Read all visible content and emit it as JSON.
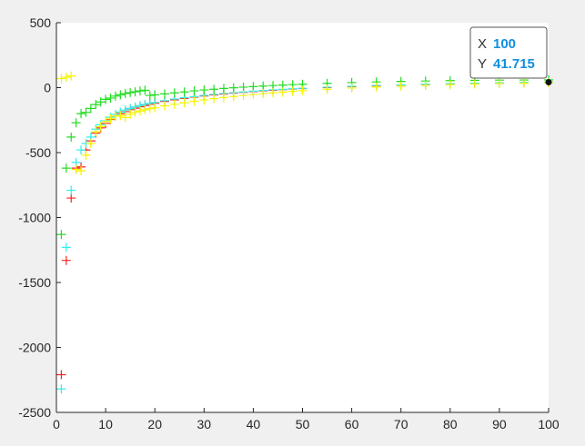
{
  "chart_data": {
    "type": "scatter",
    "marker": "+",
    "xlim": [
      0,
      100
    ],
    "ylim": [
      -2500,
      500
    ],
    "xticks": [
      "0",
      "10",
      "20",
      "30",
      "40",
      "50",
      "60",
      "70",
      "80",
      "90",
      "100"
    ],
    "yticks": [
      "500",
      "0",
      "-500",
      "-1000",
      "-1500",
      "-2000",
      "-2500"
    ],
    "grid": false,
    "colors": {
      "plot_bg": "#ffffff",
      "figure_bg": "#f0f0f0",
      "axis": "#262626"
    },
    "series": [
      {
        "color": "#ff2020",
        "x": [
          1,
          2,
          3,
          4,
          5,
          6,
          7,
          8,
          9,
          10,
          11,
          12,
          13,
          14,
          15,
          16,
          17,
          18,
          19,
          20,
          22,
          24,
          26,
          28,
          30,
          32,
          34,
          36,
          38,
          40,
          42,
          44,
          46,
          48,
          50,
          55,
          60,
          65,
          70,
          75,
          80,
          85,
          90,
          95,
          100
        ],
        "y": [
          -2210,
          -1330,
          -850,
          -620,
          -610,
          -480,
          -410,
          -350,
          -310,
          -275,
          -245,
          -220,
          -200,
          -185,
          -170,
          -158,
          -147,
          -137,
          -128,
          -120,
          -106,
          -94,
          -83,
          -73,
          -64,
          -56,
          -49,
          -42,
          -36,
          -30,
          -25,
          -20,
          -15,
          -11,
          -7,
          1,
          8,
          14,
          20,
          25,
          29,
          33,
          36,
          39,
          41.715
        ]
      },
      {
        "color": "#33eeee",
        "x": [
          1,
          2,
          3,
          4,
          5,
          6,
          7,
          8,
          9,
          10,
          11,
          12,
          13,
          14,
          15,
          16,
          17,
          18,
          19,
          20,
          22,
          24,
          26,
          28,
          30,
          32,
          34,
          36,
          38,
          40,
          42,
          44,
          46,
          48,
          50,
          55,
          60,
          65,
          70,
          75,
          80,
          85,
          90,
          95,
          100
        ],
        "y": [
          -2320,
          -1230,
          -790,
          -575,
          -480,
          -430,
          -380,
          -320,
          -285,
          -255,
          -228,
          -205,
          -188,
          -172,
          -160,
          -148,
          -138,
          -129,
          -121,
          -114,
          -100,
          -88,
          -78,
          -69,
          -60,
          -52,
          -45,
          -39,
          -33,
          -27,
          -22,
          -17,
          -13,
          -9,
          -5,
          3,
          10,
          16,
          21,
          26,
          30,
          34,
          37,
          40,
          42
        ]
      },
      {
        "color": "#22dd22",
        "x": [
          1,
          2,
          3,
          4,
          5,
          6,
          7,
          8,
          9,
          10,
          11,
          12,
          13,
          14,
          15,
          16,
          17,
          18,
          19,
          20,
          22,
          24,
          26,
          28,
          30,
          32,
          34,
          36,
          38,
          40,
          42,
          44,
          46,
          48,
          50,
          55,
          60,
          65,
          70,
          75,
          80,
          85,
          90,
          95,
          100
        ],
        "y": [
          -1130,
          -620,
          -380,
          -270,
          -200,
          -190,
          -160,
          -130,
          -110,
          -90,
          -80,
          -65,
          -55,
          -45,
          -38,
          -32,
          -25,
          -20,
          -60,
          -55,
          -48,
          -40,
          -33,
          -25,
          -18,
          -12,
          -6,
          -1,
          4,
          8,
          12,
          16,
          20,
          23,
          26,
          33,
          39,
          44,
          48,
          51,
          54,
          56,
          58,
          59,
          60
        ]
      },
      {
        "color": "#f5f500",
        "x": [
          1,
          2,
          3,
          4,
          5,
          6,
          7,
          8,
          9,
          10,
          11,
          12,
          13,
          14,
          15,
          16,
          17,
          18,
          19,
          20,
          22,
          24,
          26,
          28,
          30,
          32,
          34,
          36,
          38,
          40,
          42,
          44,
          46,
          48,
          50,
          55,
          60,
          65,
          70,
          75,
          80,
          85,
          90,
          95,
          100
        ],
        "y": [
          70,
          80,
          90,
          -630,
          -640,
          -520,
          -430,
          -340,
          -300,
          -260,
          -240,
          -220,
          -215,
          -230,
          -205,
          -190,
          -180,
          -170,
          -162,
          -155,
          -140,
          -128,
          -116,
          -105,
          -95,
          -85,
          -76,
          -68,
          -60,
          -53,
          -46,
          -40,
          -34,
          -28,
          -23,
          -12,
          -3,
          5,
          12,
          18,
          23,
          28,
          32,
          35,
          38
        ]
      }
    ],
    "datatip": {
      "x_label": "X",
      "x_value": "100",
      "y_label": "Y",
      "y_value": "41.715",
      "x": 100,
      "y": 41.715
    }
  }
}
